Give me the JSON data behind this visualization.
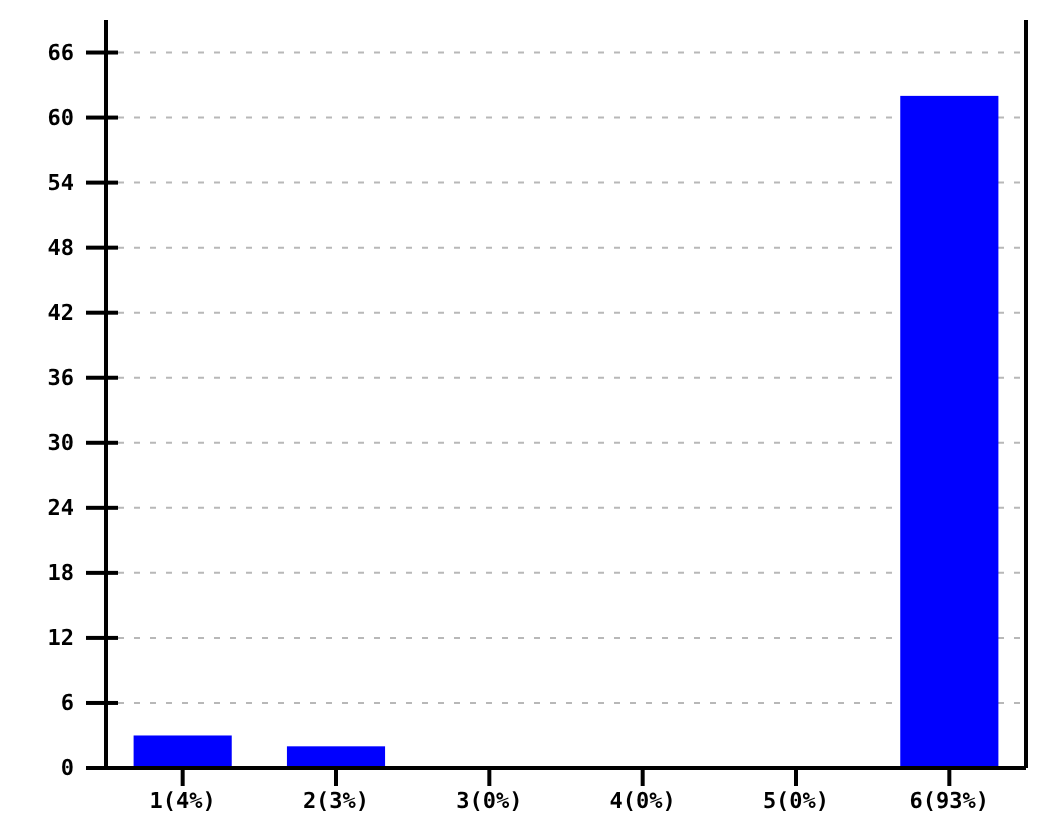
{
  "chart_data": {
    "type": "bar",
    "categories": [
      "1(4%)",
      "2(3%)",
      "3(0%)",
      "4(0%)",
      "5(0%)",
      "6(93%)"
    ],
    "values": [
      3,
      2,
      0,
      0,
      0,
      62
    ],
    "color": "#0000ff",
    "ylim": [
      0,
      69
    ],
    "yticks": [
      0,
      6,
      12,
      18,
      24,
      30,
      36,
      42,
      48,
      54,
      60,
      66
    ],
    "grid": "y"
  }
}
